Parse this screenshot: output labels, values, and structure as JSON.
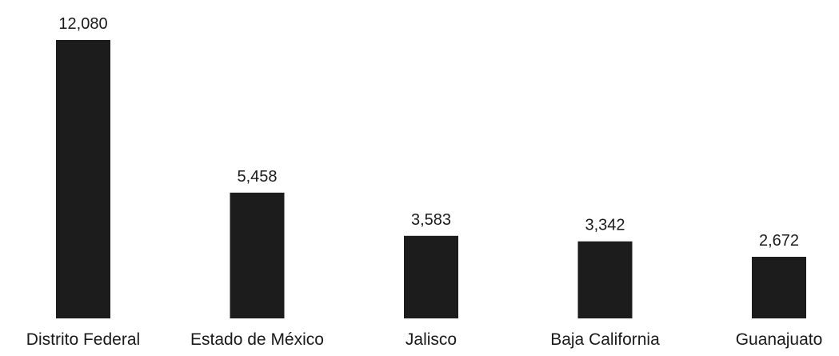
{
  "chart_data": {
    "type": "bar",
    "categories": [
      "Distrito Federal",
      "Estado de México",
      "Jalisco",
      "Baja California",
      "Guanajuato"
    ],
    "values": [
      12080,
      5458,
      3583,
      3342,
      2672
    ],
    "value_labels": [
      "12,080",
      "5,458",
      "3,583",
      "3,342",
      "2,672"
    ],
    "title": "",
    "xlabel": "",
    "ylabel": "",
    "ylim": [
      0,
      12080
    ],
    "grid": false,
    "legend": "none",
    "bar_color": "#1c1c1c"
  }
}
